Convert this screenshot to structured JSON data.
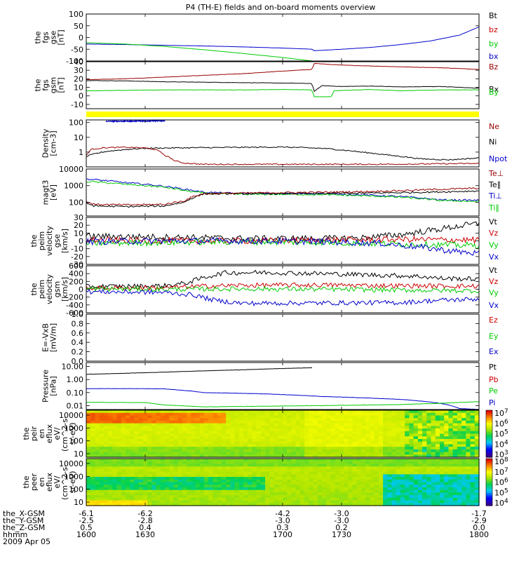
{
  "title": "P4 (TH-E) fields and on-board moments overview",
  "colors": {
    "black": "#000000",
    "red": "#cc0000",
    "darkred": "#990000",
    "green": "#00cc00",
    "blue": "#0000cc",
    "yellow": "#ffff00"
  },
  "chart_data": [
    {
      "type": "line",
      "id": "fgs_gse",
      "ylabel": "the fgs gse [nT]",
      "ylim": [
        -100,
        100
      ],
      "yticks": [
        "100",
        "50",
        "0",
        "-50",
        "-100"
      ],
      "legend": [
        {
          "name": "Bt",
          "color": "black"
        },
        {
          "name": "bz",
          "color": "red"
        },
        {
          "name": "by",
          "color": "green"
        },
        {
          "name": "bx",
          "color": "blue"
        }
      ],
      "series": [
        {
          "name": "bx",
          "color": "blue",
          "x": [
            1600,
            1620,
            1640,
            1660,
            1680,
            1700,
            1710,
            1715,
            1716,
            1730,
            1745,
            1760,
            1775,
            1790,
            1800
          ],
          "y": [
            -28,
            -30,
            -33,
            -36,
            -40,
            -45,
            -48,
            -50,
            -56,
            -50,
            -42,
            -30,
            -15,
            10,
            45
          ]
        },
        {
          "name": "by",
          "color": "green",
          "x": [
            1600,
            1620,
            1640,
            1660,
            1680,
            1700,
            1715
          ],
          "y": [
            -22,
            -28,
            -38,
            -52,
            -68,
            -85,
            -100
          ]
        }
      ]
    },
    {
      "type": "line",
      "id": "fgs_gsm",
      "ylabel": "the fgs gsm [nT]",
      "ylim": [
        -15,
        40
      ],
      "yticks": [
        "40",
        "30",
        "20",
        "10",
        "0",
        "-10"
      ],
      "legend": [
        {
          "name": "Bz",
          "color": "darkred"
        },
        {
          "name": "Bx",
          "color": "black"
        },
        {
          "name": "By",
          "color": "green"
        }
      ],
      "series": [
        {
          "name": "Bz",
          "color": "darkred",
          "x": [
            1600,
            1620,
            1640,
            1660,
            1680,
            1700,
            1715,
            1716,
            1730,
            1745,
            1760,
            1780,
            1800
          ],
          "y": [
            19,
            20,
            22,
            24,
            26,
            29,
            31,
            38,
            36,
            35,
            34,
            33,
            31
          ]
        },
        {
          "name": "Bt",
          "color": "black",
          "x": [
            1600,
            1620,
            1640,
            1660,
            1680,
            1700,
            1715,
            1716,
            1720,
            1730,
            1745,
            1760,
            1780,
            1800
          ],
          "y": [
            18,
            17.5,
            16.5,
            16,
            15.5,
            15,
            14.5,
            5,
            12,
            11,
            11.5,
            10.5,
            11,
            9
          ]
        },
        {
          "name": "By",
          "color": "green",
          "x": [
            1600,
            1620,
            1640,
            1660,
            1680,
            1700,
            1715,
            1716,
            1725,
            1726,
            1745,
            1760,
            1780,
            1800
          ],
          "y": [
            6,
            6.5,
            7,
            7,
            7,
            7.5,
            7,
            -1,
            -1,
            6,
            7.5,
            6,
            7,
            7
          ]
        }
      ]
    },
    {
      "type": "line",
      "id": "density",
      "ylabel": "Density [cm-3]",
      "scale": "log",
      "ylim": [
        0.1,
        150
      ],
      "yticks": [
        "100",
        "10",
        "1"
      ],
      "legend": [
        {
          "name": "Ne",
          "color": "darkred"
        },
        {
          "name": "Ni",
          "color": "black"
        },
        {
          "name": "Npot",
          "color": "blue"
        }
      ],
      "series": [
        {
          "name": "Ni",
          "color": "black",
          "x": [
            1600,
            1610,
            1620,
            1630,
            1640,
            1660,
            1680,
            1700,
            1720,
            1740,
            1755,
            1770,
            1785,
            1800
          ],
          "y": [
            0.5,
            1.1,
            1.5,
            1.8,
            1.9,
            2.0,
            2.1,
            2.2,
            1.8,
            1.0,
            0.6,
            0.35,
            0.3,
            0.4
          ]
        },
        {
          "name": "Ne",
          "color": "darkred",
          "x": [
            1600,
            1603,
            1610,
            1620,
            1630,
            1635,
            1640,
            1645,
            1650,
            1660,
            1700,
            1750,
            1800
          ],
          "y": [
            0.6,
            1.6,
            2.0,
            2.1,
            1.9,
            1.5,
            0.6,
            0.25,
            0.18,
            0.15,
            0.15,
            0.15,
            0.17
          ]
        },
        {
          "name": "Npot",
          "color": "blue",
          "x": [
            1610,
            1625,
            1640
          ],
          "y": [
            120,
            125,
            130
          ]
        }
      ]
    },
    {
      "type": "line",
      "id": "temperature",
      "ylabel": "magt3 [eV]",
      "scale": "log",
      "ylim": [
        15,
        10000
      ],
      "yticks": [
        "10000",
        "1000",
        "100"
      ],
      "legend": [
        {
          "name": "Te⊥",
          "color": "darkred"
        },
        {
          "name": "Te∥",
          "color": "black"
        },
        {
          "name": "Ti⊥",
          "color": "blue"
        },
        {
          "name": "Ti∥",
          "color": "green"
        }
      ],
      "series": [
        {
          "name": "Ti⊥",
          "color": "blue",
          "x": [
            1600,
            1620,
            1640,
            1650,
            1660,
            1680,
            1700,
            1720,
            1740,
            1760,
            1780,
            1800
          ],
          "y": [
            2500,
            1500,
            900,
            600,
            400,
            330,
            330,
            330,
            280,
            220,
            140,
            130
          ]
        },
        {
          "name": "Ti∥",
          "color": "green",
          "x": [
            1600,
            1620,
            1640,
            1650,
            1660,
            1680,
            1700,
            1720,
            1740,
            1760,
            1780,
            1800
          ],
          "y": [
            1800,
            1200,
            800,
            500,
            350,
            300,
            300,
            290,
            250,
            200,
            130,
            110
          ]
        },
        {
          "name": "Te∥",
          "color": "black",
          "x": [
            1600,
            1604,
            1620,
            1640,
            1650,
            1655,
            1660,
            1680,
            1700,
            1720,
            1740,
            1760,
            1780,
            1800
          ],
          "y": [
            90,
            60,
            55,
            60,
            100,
            200,
            320,
            330,
            330,
            340,
            350,
            380,
            420,
            480
          ]
        },
        {
          "name": "Te⊥",
          "color": "darkred",
          "x": [
            1600,
            1604,
            1620,
            1640,
            1650,
            1655,
            1660,
            1680,
            1700,
            1720,
            1740,
            1760,
            1780,
            1800
          ],
          "y": [
            110,
            75,
            70,
            75,
            120,
            230,
            330,
            360,
            380,
            400,
            430,
            500,
            600,
            700
          ]
        }
      ]
    },
    {
      "type": "line",
      "id": "velocity_perm_gse",
      "ylabel": "the peim velocity gse [km/s]",
      "ylim": [
        -30,
        30
      ],
      "yticks": [
        "30",
        "20",
        "10",
        "0",
        "-10",
        "-20",
        "-30"
      ],
      "legend": [
        {
          "name": "Vt",
          "color": "black"
        },
        {
          "name": "Vz",
          "color": "red"
        },
        {
          "name": "Vy",
          "color": "green"
        },
        {
          "name": "Vx",
          "color": "blue"
        }
      ],
      "series": [
        {
          "name": "Vt",
          "color": "black",
          "x": [
            1600,
            1640,
            1680,
            1720,
            1740,
            1760,
            1780,
            1790,
            1800
          ],
          "y": [
            6,
            5,
            3,
            3,
            4,
            8,
            15,
            19,
            22
          ]
        },
        {
          "name": "Vz",
          "color": "red",
          "x": [
            1600,
            1640,
            1680,
            1720,
            1760,
            1800
          ],
          "y": [
            1,
            0,
            0,
            1,
            2,
            1
          ]
        },
        {
          "name": "Vy",
          "color": "green",
          "x": [
            1600,
            1640,
            1680,
            1720,
            1760,
            1800
          ],
          "y": [
            -3,
            -2,
            -1,
            -2,
            -4,
            -6
          ]
        },
        {
          "name": "Vx",
          "color": "blue",
          "x": [
            1600,
            1640,
            1680,
            1720,
            1750,
            1770,
            1790,
            1800
          ],
          "y": [
            -1,
            0,
            0,
            -1,
            -3,
            -8,
            -14,
            -16
          ]
        }
      ]
    },
    {
      "type": "line",
      "id": "velocity_perm_gsm",
      "ylabel": "the peim velocity gsm [km/s]",
      "ylim": [
        -600,
        600
      ],
      "yticks": [
        "600",
        "400",
        "200",
        "0",
        "-200",
        "-400",
        "-600"
      ],
      "legend": [
        {
          "name": "Vt",
          "color": "black"
        },
        {
          "name": "Vz",
          "color": "red"
        },
        {
          "name": "Vy",
          "color": "green"
        },
        {
          "name": "Vx",
          "color": "blue"
        }
      ],
      "series": [
        {
          "name": "Vt",
          "color": "black",
          "x": [
            1600,
            1630,
            1640,
            1650,
            1660,
            1670,
            1690,
            1720,
            1750,
            1770,
            1780,
            1800
          ],
          "y": [
            70,
            80,
            90,
            150,
            300,
            420,
            430,
            400,
            360,
            330,
            280,
            260
          ]
        },
        {
          "name": "Vz",
          "color": "red",
          "x": [
            1600,
            1640,
            1660,
            1680,
            1720,
            1760,
            1800
          ],
          "y": [
            30,
            40,
            80,
            100,
            110,
            90,
            80
          ]
        },
        {
          "name": "Vy",
          "color": "green",
          "x": [
            1600,
            1640,
            1680,
            1720,
            1760,
            1800
          ],
          "y": [
            10,
            0,
            10,
            0,
            -20,
            -40
          ]
        },
        {
          "name": "Vx",
          "color": "blue",
          "x": [
            1600,
            1640,
            1655,
            1665,
            1680,
            1720,
            1760,
            1780,
            1800
          ],
          "y": [
            -60,
            -80,
            -150,
            -280,
            -360,
            -350,
            -340,
            -280,
            -250
          ]
        }
      ]
    },
    {
      "type": "line",
      "id": "efield",
      "ylabel": "E=-VxB [mV/m]",
      "ylim": [
        0,
        1
      ],
      "yticks": [
        "1.0",
        "0.8",
        "0.6",
        "0.4",
        "0.2",
        "0.0"
      ],
      "legend": [
        {
          "name": "Ez",
          "color": "red"
        },
        {
          "name": "Ey",
          "color": "green"
        },
        {
          "name": "Ex",
          "color": "blue"
        }
      ],
      "series": []
    },
    {
      "type": "line",
      "id": "pressure",
      "ylabel": "Pressure [nPa]",
      "scale": "log",
      "ylim": [
        0.005,
        20
      ],
      "yticks": [
        "10.00",
        "1.00",
        "0.10",
        "0.01"
      ],
      "legend": [
        {
          "name": "Pt",
          "color": "black"
        },
        {
          "name": "Pb",
          "color": "red"
        },
        {
          "name": "Pe",
          "color": "green"
        },
        {
          "name": "Pi",
          "color": "blue"
        }
      ],
      "series": [
        {
          "name": "Pt",
          "color": "black",
          "x": [
            1600,
            1620,
            1640,
            1660,
            1680,
            1700,
            1715
          ],
          "y": [
            2.5,
            3.0,
            3.7,
            4.6,
            5.6,
            7,
            8
          ]
        },
        {
          "name": "Pi",
          "color": "blue",
          "x": [
            1600,
            1630,
            1640,
            1660,
            1690,
            1700,
            1720,
            1740,
            1760,
            1780,
            1790,
            1800
          ],
          "y": [
            0.2,
            0.2,
            0.19,
            0.1,
            0.08,
            0.07,
            0.05,
            0.04,
            0.03,
            0.015,
            0.006,
            0.005
          ]
        },
        {
          "name": "Pe",
          "color": "green",
          "x": [
            1600,
            1630,
            1640,
            1660,
            1690,
            1720,
            1760,
            1780,
            1800
          ],
          "y": [
            0.018,
            0.017,
            0.011,
            0.008,
            0.009,
            0.01,
            0.012,
            0.015,
            0.02
          ]
        }
      ]
    },
    {
      "type": "heatmap",
      "id": "peir_eflux",
      "ylabel": "the peir en eflux eV/ (cm^2-s-sr-eV)",
      "colorbar_ticks": [
        "10^7",
        "10^6",
        "10^5",
        "10^4",
        "10^3"
      ],
      "yticks": [
        "10000",
        "1000",
        "100",
        "10"
      ]
    },
    {
      "type": "heatmap",
      "id": "peer_eflux",
      "ylabel": "the peer en eflux eV/ (cm^2-s-sr-eV)",
      "colorbar_ticks": [
        "10^8",
        "10^7",
        "10^6",
        "10^5",
        "10^4"
      ],
      "yticks": [
        "10000",
        "1000",
        "100",
        "10"
      ]
    }
  ],
  "xaxis": {
    "range": [
      1600,
      1800
    ],
    "ticks": [
      1600,
      1630,
      1700,
      1730,
      1800
    ],
    "rows": [
      {
        "label": "the_X-GSM",
        "values": [
          "-6.1",
          "-6.2",
          "-4.2",
          "-3.0",
          "-1.7"
        ]
      },
      {
        "label": "the_Y-GSM",
        "values": [
          "-2.5",
          "-2.8",
          "-3.0",
          "-3.0",
          "-2.9"
        ]
      },
      {
        "label": "the_Z-GSM",
        "values": [
          "0.5",
          "0.4",
          "0.3",
          "0.2",
          "0.0"
        ]
      },
      {
        "label": "hhmm",
        "values": [
          "1600",
          "1630",
          "1700",
          "1730",
          "1800"
        ]
      }
    ],
    "date": "2009 Apr 05"
  },
  "ylabels": {
    "p0": [
      "the",
      "fgs",
      "gse",
      "[nT]"
    ],
    "p1": [
      "the",
      "fgs",
      "gsm",
      "[nT]"
    ],
    "p3": [
      "Density",
      "[cm-3]"
    ],
    "p4": [
      "magt3",
      "[eV]"
    ],
    "p5": [
      "the",
      "peim",
      "velocity",
      "gse",
      "[km/s]"
    ],
    "p6": [
      "the",
      "peim",
      "velocity",
      "gsm",
      "[km/s]"
    ],
    "p7": [
      "E=-VxB",
      "[mV/m]"
    ],
    "p8": [
      "Pressure",
      "[nPa]"
    ],
    "p9": [
      "the",
      "peir",
      "en",
      "eflux",
      "eV/",
      "(cm^2-s-",
      "sr-eV)"
    ],
    "p10": [
      "the",
      "peer",
      "en",
      "eflux",
      "eV/",
      "(cm^2-s-",
      "sr-eV)"
    ]
  }
}
